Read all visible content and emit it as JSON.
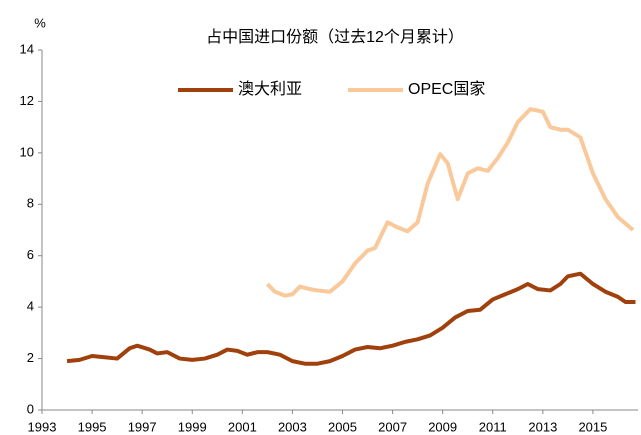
{
  "chart_data": {
    "type": "line",
    "title": "占中国进口份额（过去12个月累计）",
    "y_label": "%",
    "xlim": [
      1993,
      2016.8
    ],
    "xticks": [
      1993,
      1995,
      1997,
      1999,
      2001,
      2003,
      2005,
      2007,
      2009,
      2011,
      2013,
      2015
    ],
    "ylim": [
      0,
      14
    ],
    "yticks": [
      0,
      2,
      4,
      6,
      8,
      10,
      12,
      14
    ],
    "series": [
      {
        "name": "澳大利亚",
        "color": "#a0410d",
        "x": [
          1994,
          1994.5,
          1995,
          1995.5,
          1996,
          1996.5,
          1996.8,
          1997.3,
          1997.6,
          1998,
          1998.5,
          1999,
          1999.5,
          2000,
          2000.4,
          2000.8,
          2001.2,
          2001.6,
          2002,
          2002.5,
          2003,
          2003.5,
          2004,
          2004.5,
          2005,
          2005.5,
          2006,
          2006.5,
          2007,
          2007.5,
          2008,
          2008.5,
          2009,
          2009.5,
          2010,
          2010.5,
          2011,
          2011.5,
          2012,
          2012.4,
          2012.8,
          2013.3,
          2013.7,
          2014,
          2014.5,
          2015,
          2015.5,
          2016,
          2016.3,
          2016.7
        ],
        "values": [
          1.9,
          1.95,
          2.1,
          2.05,
          2.0,
          2.4,
          2.5,
          2.35,
          2.2,
          2.25,
          2.0,
          1.95,
          2.0,
          2.15,
          2.35,
          2.3,
          2.15,
          2.25,
          2.25,
          2.15,
          1.9,
          1.8,
          1.8,
          1.9,
          2.1,
          2.35,
          2.45,
          2.4,
          2.5,
          2.65,
          2.75,
          2.9,
          3.2,
          3.6,
          3.85,
          3.9,
          4.3,
          4.5,
          4.7,
          4.9,
          4.7,
          4.65,
          4.9,
          5.2,
          5.3,
          4.9,
          4.6,
          4.4,
          4.2,
          4.2
        ]
      },
      {
        "name": "OPEC国家",
        "color": "#f9c89b",
        "x": [
          2002,
          2002.3,
          2002.7,
          2003,
          2003.3,
          2003.7,
          2004,
          2004.5,
          2005,
          2005.5,
          2006,
          2006.3,
          2006.8,
          2007.2,
          2007.6,
          2008,
          2008.4,
          2008.9,
          2009.2,
          2009.6,
          2010,
          2010.4,
          2010.8,
          2011.2,
          2011.6,
          2012,
          2012.5,
          2013,
          2013.3,
          2013.7,
          2014,
          2014.5,
          2015,
          2015.5,
          2016,
          2016.6
        ],
        "values": [
          4.9,
          4.6,
          4.45,
          4.5,
          4.8,
          4.7,
          4.65,
          4.6,
          5.0,
          5.7,
          6.2,
          6.3,
          7.3,
          7.1,
          6.95,
          7.3,
          8.8,
          9.95,
          9.6,
          8.2,
          9.2,
          9.4,
          9.3,
          9.8,
          10.4,
          11.2,
          11.7,
          11.6,
          11.0,
          10.9,
          10.9,
          10.6,
          9.2,
          8.2,
          7.5,
          7.0
        ]
      }
    ]
  }
}
